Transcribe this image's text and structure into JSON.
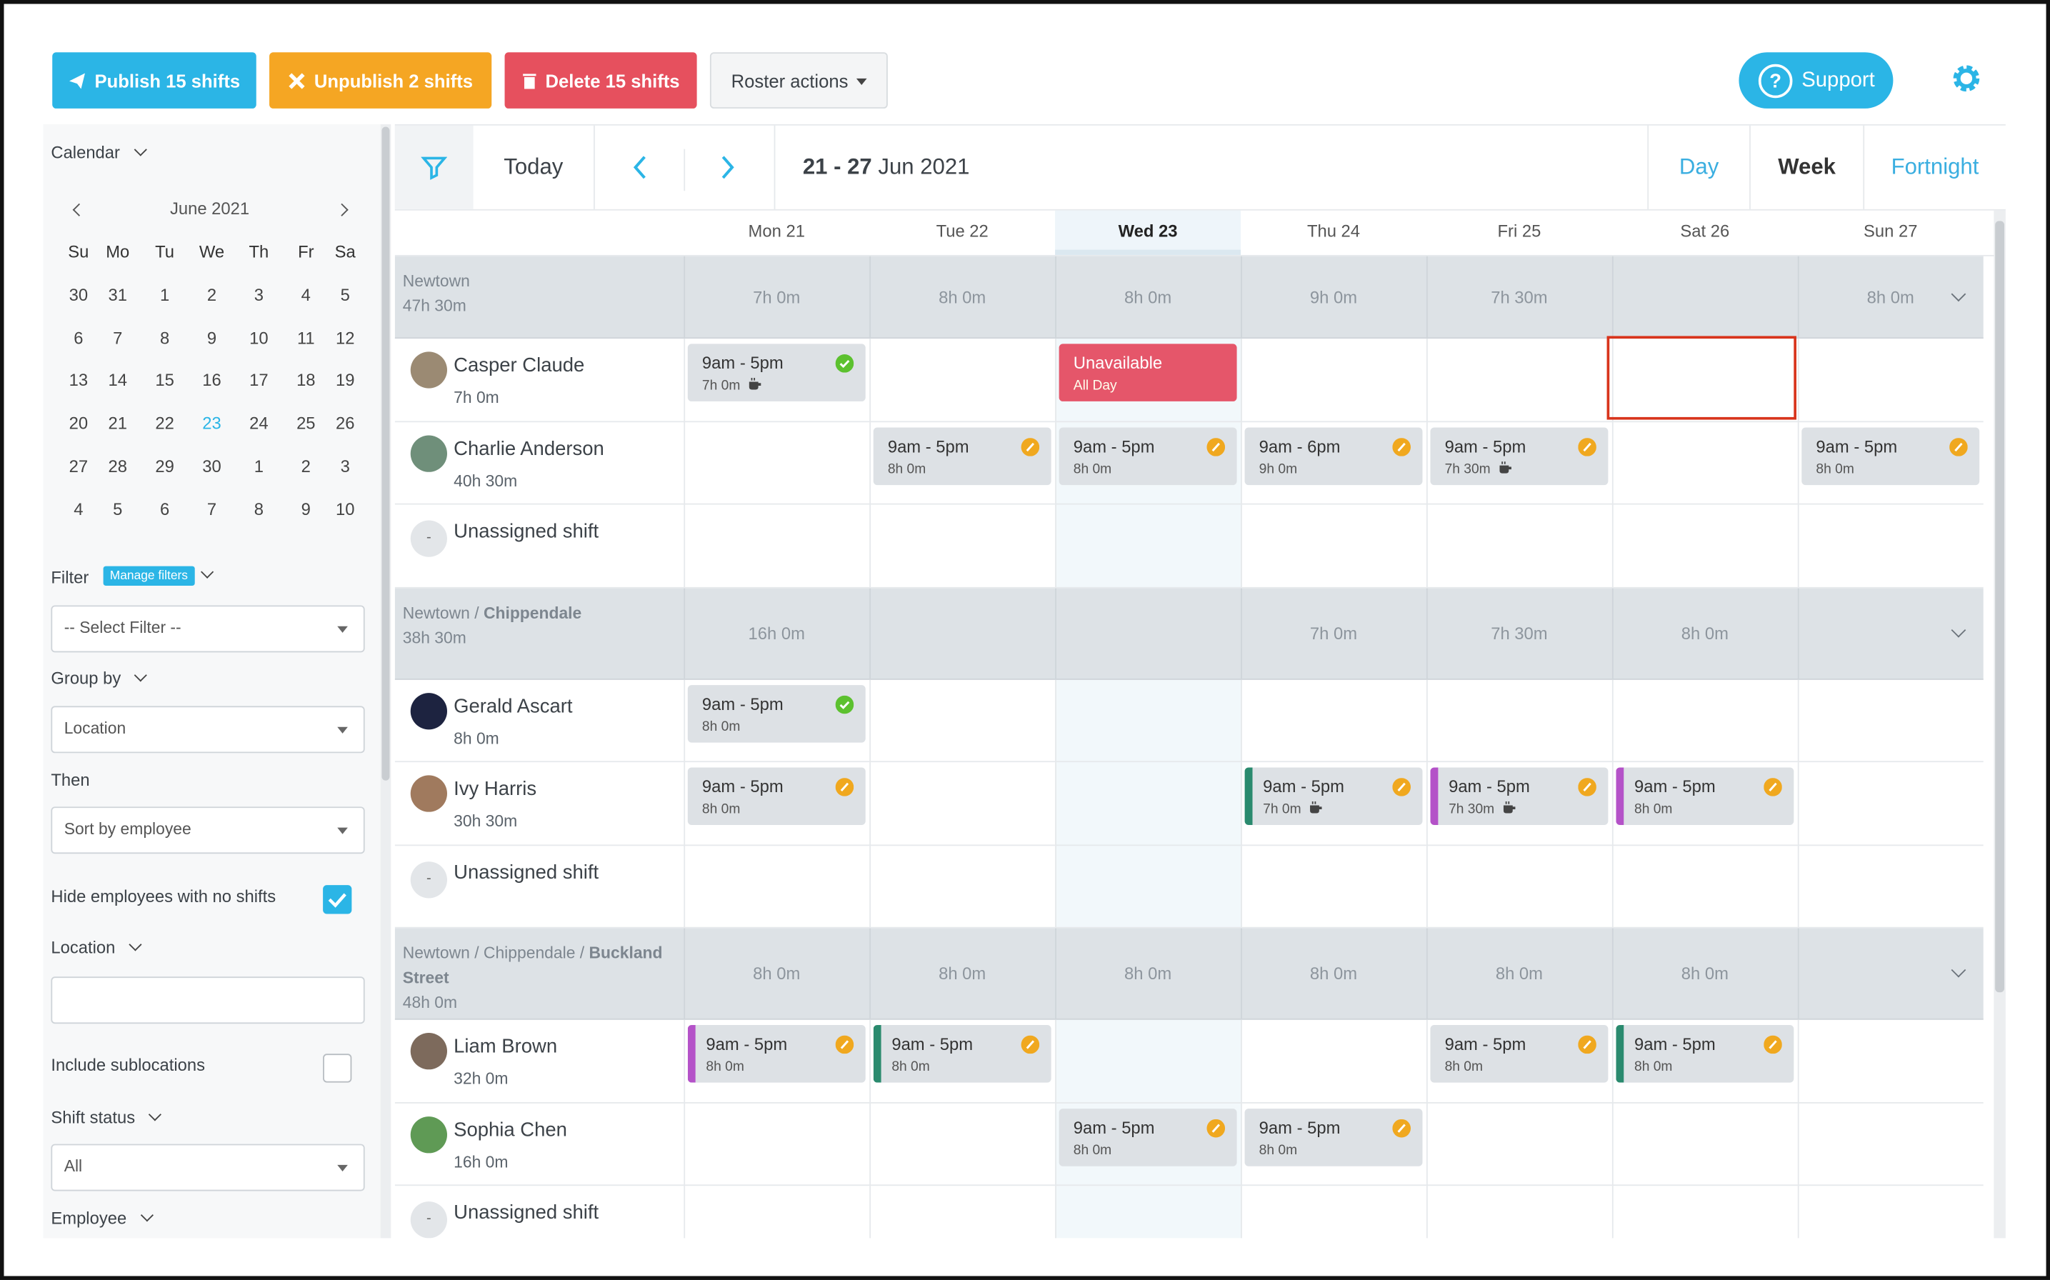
{
  "toolbar": {
    "publish": "Publish 15 shifts",
    "unpublish": "Unpublish 2 shifts",
    "delete": "Delete 15 shifts",
    "roster_actions": "Roster actions",
    "support": "Support"
  },
  "sidebar": {
    "calendar_label": "Calendar",
    "month": "June 2021",
    "weekdays": [
      "Su",
      "Mo",
      "Tu",
      "We",
      "Th",
      "Fr",
      "Sa"
    ],
    "weeks": [
      [
        30,
        31,
        1,
        2,
        3,
        4,
        5
      ],
      [
        6,
        7,
        8,
        9,
        10,
        11,
        12
      ],
      [
        13,
        14,
        15,
        16,
        17,
        18,
        19
      ],
      [
        20,
        21,
        22,
        23,
        24,
        25,
        26
      ],
      [
        27,
        28,
        29,
        30,
        1,
        2,
        3
      ],
      [
        4,
        5,
        6,
        7,
        8,
        9,
        10
      ]
    ],
    "selected": {
      "week": 3,
      "day": 3
    },
    "filter_label": "Filter",
    "manage_filters": "Manage filters",
    "filter_placeholder": "-- Select Filter --",
    "group_by_label": "Group by",
    "group_by": "Location",
    "then_label": "Then",
    "then": "Sort by employee",
    "hide_label": "Hide employees with no shifts",
    "location_label": "Location",
    "include_sub": "Include sublocations",
    "shift_status_label": "Shift status",
    "shift_status": "All",
    "employee_label": "Employee"
  },
  "nav": {
    "today": "Today",
    "range_bold": "21 - 27",
    "range_rest": "Jun 2021",
    "views": [
      "Day",
      "Week",
      "Fortnight"
    ],
    "active_view": 1
  },
  "days": [
    "Mon 21",
    "Tue 22",
    "Wed 23",
    "Thu 24",
    "Fri 25",
    "Sat 26",
    "Sun 27"
  ],
  "highlight_day": 2,
  "groups": [
    {
      "name": "Newtown",
      "total": "47h 30m",
      "day_totals": [
        "7h 0m",
        "8h 0m",
        "8h 0m",
        "9h 0m",
        "7h 30m",
        null,
        "8h 0m"
      ],
      "rows": [
        {
          "name": "Casper Claude",
          "hours": "7h 0m",
          "avatar_color": "#9b8a73",
          "shifts": [
            {
              "time": "9am - 5pm",
              "duration": "7h 0m",
              "status": "published",
              "break": true
            },
            null,
            {
              "time": "Unavailable",
              "duration": "All Day",
              "type": "unavailable"
            },
            null,
            null,
            null,
            null
          ]
        },
        {
          "name": "Charlie Anderson",
          "hours": "40h 30m",
          "avatar_color": "#6f8f7a",
          "shifts": [
            null,
            {
              "time": "9am - 5pm",
              "duration": "8h 0m",
              "status": "pending"
            },
            {
              "time": "9am - 5pm",
              "duration": "8h 0m",
              "status": "pending"
            },
            {
              "time": "9am - 6pm",
              "duration": "9h 0m",
              "status": "pending"
            },
            {
              "time": "9am - 5pm",
              "duration": "7h 30m",
              "status": "pending",
              "break": true
            },
            null,
            {
              "time": "9am - 5pm",
              "duration": "8h 0m",
              "status": "pending"
            }
          ]
        },
        {
          "name": "Unassigned shift",
          "avatar": "-",
          "shifts": [
            null,
            null,
            null,
            null,
            null,
            null,
            null
          ]
        }
      ]
    },
    {
      "parent": "Newtown / ",
      "name": "Chippendale",
      "total": "38h 30m",
      "day_totals": [
        "16h 0m",
        null,
        null,
        "7h 0m",
        "7h 30m",
        "8h 0m",
        null
      ],
      "rows": [
        {
          "name": "Gerald Ascart",
          "hours": "8h 0m",
          "avatar_color": "#1d2340",
          "shifts": [
            {
              "time": "9am - 5pm",
              "duration": "8h 0m",
              "status": "published"
            },
            null,
            null,
            null,
            null,
            null,
            null
          ]
        },
        {
          "name": "Ivy Harris",
          "hours": "30h 30m",
          "avatar_color": "#a07a5e",
          "shifts": [
            {
              "time": "9am - 5pm",
              "duration": "8h 0m",
              "status": "pending"
            },
            null,
            null,
            {
              "time": "9am - 5pm",
              "duration": "7h 0m",
              "status": "pending",
              "break": true,
              "bar": "#2a8a6e"
            },
            {
              "time": "9am - 5pm",
              "duration": "7h 30m",
              "status": "pending",
              "break": true,
              "bar": "#b452c8"
            },
            {
              "time": "9am - 5pm",
              "duration": "8h 0m",
              "status": "pending",
              "bar": "#b452c8"
            },
            null
          ]
        },
        {
          "name": "Unassigned shift",
          "avatar": "-",
          "shifts": [
            null,
            null,
            null,
            null,
            null,
            null,
            null
          ]
        }
      ]
    },
    {
      "parent": "Newtown / Chippendale / ",
      "name": "Buckland Street",
      "total": "48h 0m",
      "day_totals": [
        "8h 0m",
        "8h 0m",
        "8h 0m",
        "8h 0m",
        "8h 0m",
        "8h 0m",
        null
      ],
      "rows": [
        {
          "name": "Liam Brown",
          "hours": "32h 0m",
          "avatar_color": "#7d6a5c",
          "shifts": [
            {
              "time": "9am - 5pm",
              "duration": "8h 0m",
              "status": "pending",
              "bar": "#b452c8"
            },
            {
              "time": "9am - 5pm",
              "duration": "8h 0m",
              "status": "pending",
              "bar": "#2a8a6e"
            },
            null,
            null,
            {
              "time": "9am - 5pm",
              "duration": "8h 0m",
              "status": "pending"
            },
            {
              "time": "9am - 5pm",
              "duration": "8h 0m",
              "status": "pending",
              "bar": "#2a8a6e"
            },
            null
          ]
        },
        {
          "name": "Sophia Chen",
          "hours": "16h 0m",
          "avatar_color": "#5f9a55",
          "shifts": [
            null,
            null,
            {
              "time": "9am - 5pm",
              "duration": "8h 0m",
              "status": "pending"
            },
            {
              "time": "9am - 5pm",
              "duration": "8h 0m",
              "status": "pending"
            },
            null,
            null,
            null
          ]
        },
        {
          "name": "Unassigned shift",
          "avatar": "-",
          "shifts": [
            null,
            null,
            null,
            null,
            null,
            null,
            null
          ]
        }
      ]
    }
  ]
}
